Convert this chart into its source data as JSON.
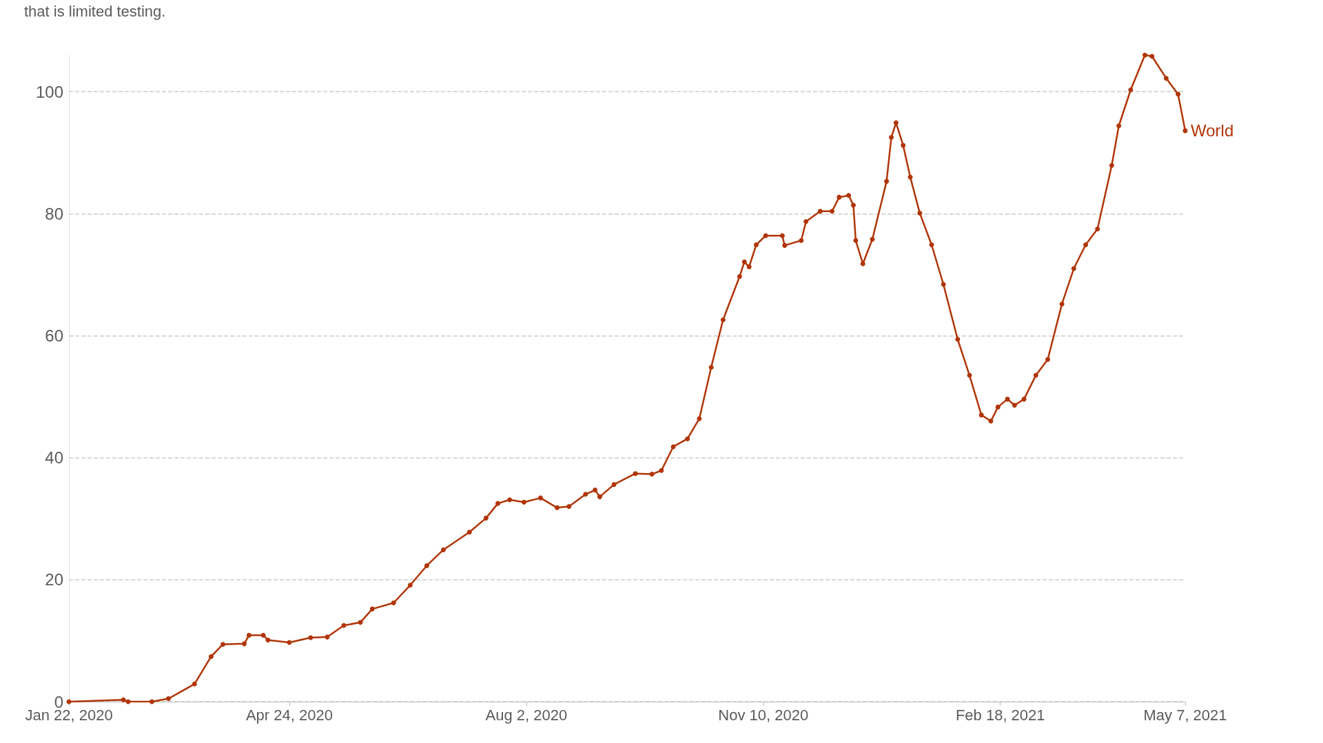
{
  "chart_data": {
    "type": "line",
    "subtitle": "that is limited testing.",
    "x": [
      "2020-01-22",
      "2020-02-14",
      "2020-02-16",
      "2020-02-26",
      "2020-03-04",
      "2020-03-15",
      "2020-03-22",
      "2020-03-27",
      "2020-04-05",
      "2020-04-07",
      "2020-04-13",
      "2020-04-15",
      "2020-04-24",
      "2020-05-03",
      "2020-05-10",
      "2020-05-17",
      "2020-05-24",
      "2020-05-29",
      "2020-06-07",
      "2020-06-14",
      "2020-06-21",
      "2020-06-28",
      "2020-07-09",
      "2020-07-16",
      "2020-07-21",
      "2020-07-26",
      "2020-08-01",
      "2020-08-08",
      "2020-08-15",
      "2020-08-20",
      "2020-08-27",
      "2020-08-31",
      "2020-09-02",
      "2020-09-08",
      "2020-09-17",
      "2020-09-24",
      "2020-09-28",
      "2020-10-03",
      "2020-10-09",
      "2020-10-14",
      "2020-10-19",
      "2020-10-24",
      "2020-10-31",
      "2020-11-02",
      "2020-11-04",
      "2020-11-07",
      "2020-11-11",
      "2020-11-18",
      "2020-11-19",
      "2020-11-26",
      "2020-11-28",
      "2020-12-04",
      "2020-12-09",
      "2020-12-12",
      "2020-12-16",
      "2020-12-18",
      "2020-12-19",
      "2020-12-22",
      "2020-12-26",
      "2021-01-01",
      "2021-01-03",
      "2021-01-05",
      "2021-01-08",
      "2021-01-11",
      "2021-01-15",
      "2021-01-20",
      "2021-01-25",
      "2021-01-31",
      "2021-02-05",
      "2021-02-10",
      "2021-02-14",
      "2021-02-17",
      "2021-02-21",
      "2021-02-24",
      "2021-02-28",
      "2021-03-05",
      "2021-03-10",
      "2021-03-16",
      "2021-03-21",
      "2021-03-26",
      "2021-03-31",
      "2021-04-06",
      "2021-04-09",
      "2021-04-14",
      "2021-04-20",
      "2021-04-23",
      "2021-04-29",
      "2021-05-04",
      "2021-05-07"
    ],
    "series": [
      {
        "name": "World",
        "color": "#b13507",
        "values": [
          0,
          0.3,
          0,
          0,
          0.5,
          2.9,
          7.4,
          9.4,
          9.5,
          10.9,
          10.9,
          10.1,
          9.7,
          10.5,
          10.6,
          12.5,
          13,
          15.2,
          16.2,
          19.1,
          22.3,
          24.9,
          27.8,
          30.1,
          32.5,
          33.1,
          32.7,
          33.4,
          31.8,
          32,
          34,
          34.7,
          33.6,
          35.6,
          37.4,
          37.3,
          37.9,
          41.8,
          43.1,
          46.4,
          54.8,
          62.6,
          69.7,
          72.1,
          71.3,
          74.9,
          76.4,
          76.4,
          74.8,
          75.6,
          78.7,
          80.4,
          80.4,
          82.7,
          83,
          81.4,
          75.6,
          71.8,
          75.8,
          85.3,
          92.5,
          94.9,
          91.2,
          86,
          80.1,
          74.9,
          68.4,
          59.4,
          53.5,
          47,
          46,
          48.3,
          49.6,
          48.6,
          49.6,
          53.5,
          56.1,
          65.2,
          71,
          74.9,
          77.5,
          87.9,
          94.4,
          100.3,
          106,
          105.8,
          102.2,
          99.6,
          93.6
        ]
      }
    ],
    "xlim": [
      "2020-01-22",
      "2021-05-07"
    ],
    "xticks": [
      {
        "value": "2020-01-22",
        "label": "Jan 22, 2020"
      },
      {
        "value": "2020-04-24",
        "label": "Apr 24, 2020"
      },
      {
        "value": "2020-08-02",
        "label": "Aug 2, 2020"
      },
      {
        "value": "2020-11-10",
        "label": "Nov 10, 2020"
      },
      {
        "value": "2021-02-18",
        "label": "Feb 18, 2021"
      },
      {
        "value": "2021-05-07",
        "label": "May 7, 2021"
      }
    ],
    "ylim": [
      0,
      106
    ],
    "yticks": [
      0,
      20,
      40,
      60,
      80,
      100
    ],
    "grid": "y",
    "legend": false,
    "marker": "circle",
    "line_style": "solid"
  }
}
